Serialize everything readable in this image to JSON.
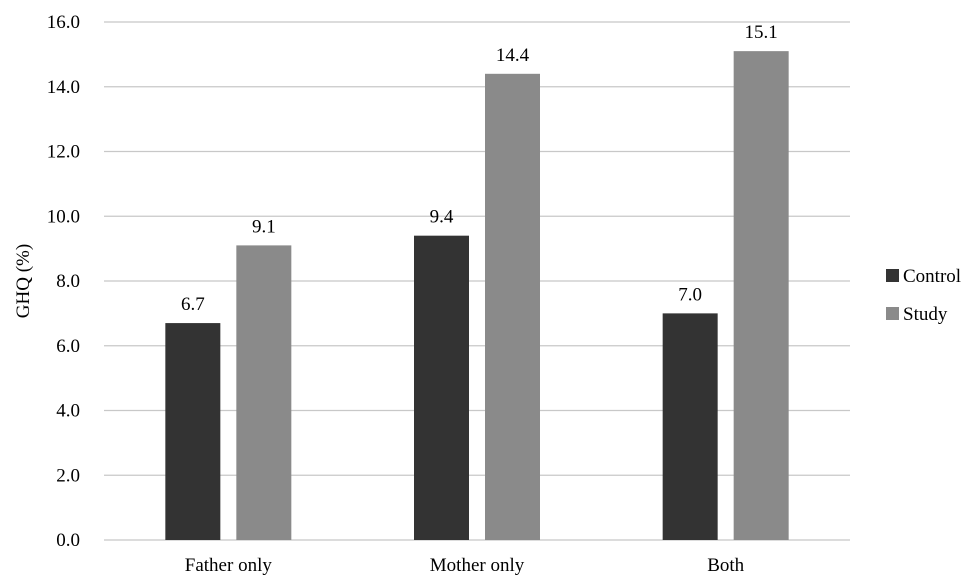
{
  "chart_data": {
    "type": "bar",
    "categories": [
      "Father only",
      "Mother only",
      "Both"
    ],
    "series": [
      {
        "name": "Control",
        "values": [
          6.7,
          9.4,
          7.0
        ],
        "labels": [
          "6.7",
          "9.4",
          "7.0"
        ],
        "color": "#333333"
      },
      {
        "name": "Study",
        "values": [
          9.1,
          14.4,
          15.1
        ],
        "labels": [
          "9.1",
          "14.4",
          "15.1"
        ],
        "color": "#8a8a8a"
      }
    ],
    "ylabel": "GHQ (%)",
    "xlabel": "",
    "ylim": [
      0,
      16
    ],
    "yticks": [
      "0.0",
      "2.0",
      "4.0",
      "6.0",
      "8.0",
      "10.0",
      "12.0",
      "14.0",
      "16.0"
    ],
    "grid": true,
    "legend": "right",
    "gridline_color": "#c8c8c8"
  }
}
